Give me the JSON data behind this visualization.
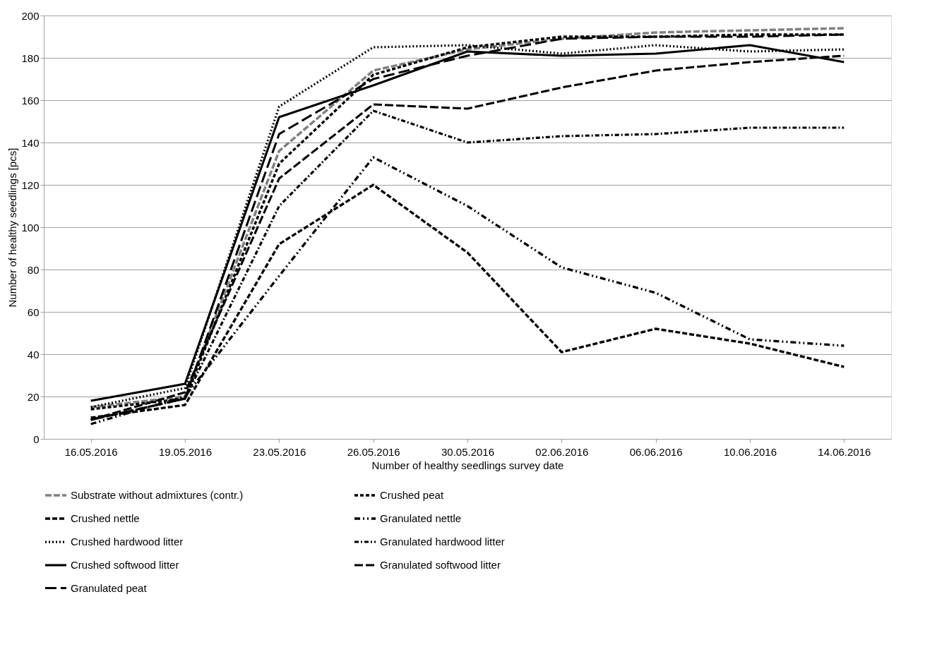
{
  "chart_data": {
    "type": "line",
    "xlabel": "Number of healthy seedlings survey date",
    "ylabel": "Number of healthy seedlings [pcs]",
    "categories": [
      "16.05.2016",
      "19.05.2016",
      "23.05.2016",
      "26.05.2016",
      "30.05.2016",
      "02.06.2016",
      "06.06.2016",
      "10.06.2016",
      "14.06.2016"
    ],
    "ylim": [
      0,
      200
    ],
    "yticks": [
      0,
      20,
      40,
      60,
      80,
      100,
      120,
      140,
      160,
      180,
      200
    ],
    "grid": "y",
    "legend": "bottom",
    "series": [
      {
        "name": "Substrate without admixtures (contr.)",
        "color": "#808080",
        "line_style": "longdash",
        "values": [
          15,
          20,
          136,
          174,
          184,
          189,
          192,
          193,
          194
        ]
      },
      {
        "name": "Crushed peat",
        "color": "#000000",
        "line_style": "shortdash",
        "values": [
          14,
          19,
          130,
          172,
          185,
          190,
          190,
          191,
          191
        ]
      },
      {
        "name": "Crushed nettle",
        "color": "#000000",
        "line_style": "dashed",
        "values": [
          10,
          16,
          92,
          120,
          88,
          41,
          52,
          45,
          34
        ]
      },
      {
        "name": "Granulated nettle",
        "color": "#000000",
        "line_style": "dashdotdot",
        "values": [
          7,
          20,
          77,
          133,
          110,
          81,
          69,
          47,
          44
        ]
      },
      {
        "name": "Crushed hardwood litter",
        "color": "#000000",
        "line_style": "dotted",
        "values": [
          15,
          24,
          157,
          185,
          186,
          182,
          186,
          183,
          184
        ]
      },
      {
        "name": "Granulated hardwood litter",
        "color": "#000000",
        "line_style": "dashdot",
        "values": [
          9,
          19,
          110,
          155,
          140,
          143,
          144,
          147,
          147
        ]
      },
      {
        "name": "Crushed softwood litter",
        "color": "#000000",
        "line_style": "solid",
        "values": [
          18,
          26,
          152,
          167,
          183,
          181,
          182,
          186,
          178
        ]
      },
      {
        "name": "Granulated softwood litter",
        "color": "#000000",
        "line_style": "double",
        "values": [
          9,
          22,
          123,
          158,
          156,
          166,
          174,
          178,
          181
        ]
      },
      {
        "name": "Granulated peat",
        "color": "#000000",
        "line_style": "thickdash",
        "values": [
          9,
          19,
          144,
          170,
          181,
          189,
          190,
          190,
          191
        ]
      }
    ]
  }
}
